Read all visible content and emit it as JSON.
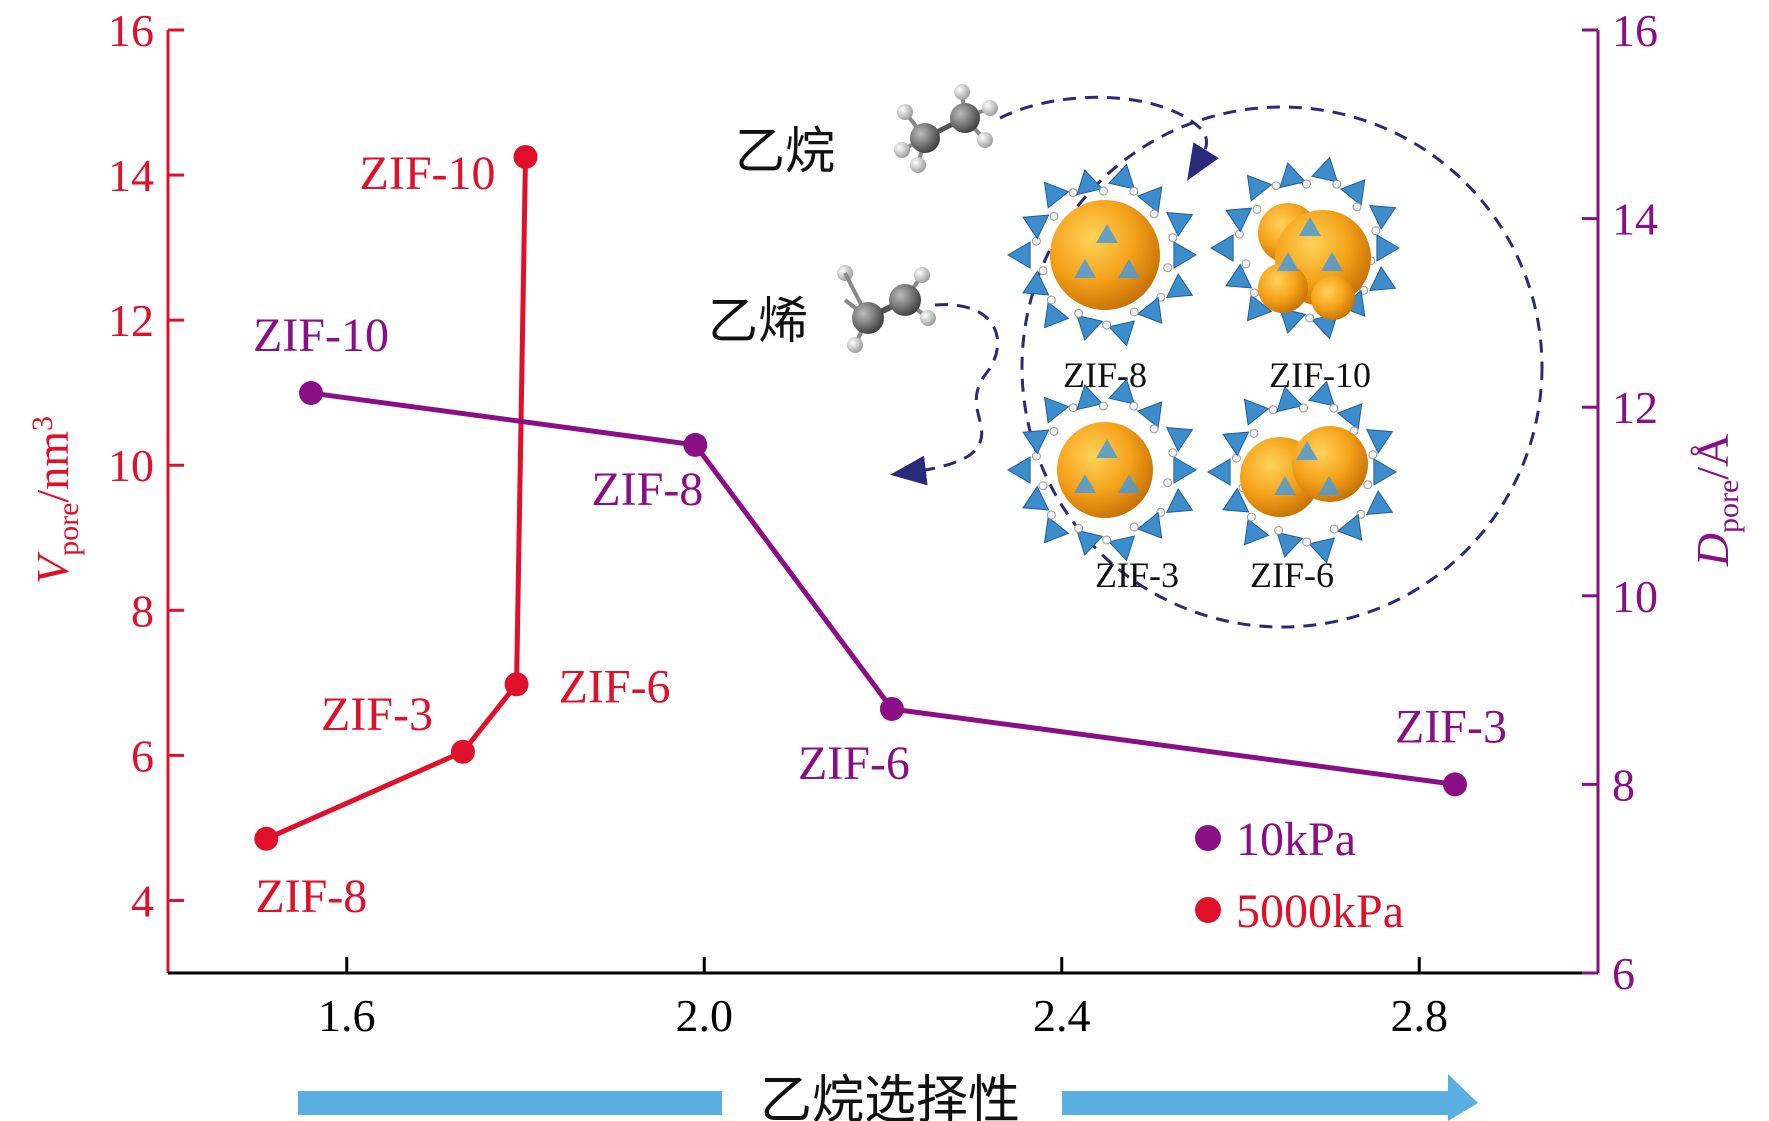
{
  "chart_data": {
    "type": "line",
    "xlabel": "乙烷选择性",
    "x_ticks": [
      "1.6",
      "2.0",
      "2.4",
      "2.8"
    ],
    "xlim": [
      1.4,
      3.0
    ],
    "y_left": {
      "label_main": "V",
      "label_sub": "pore",
      "label_unit": "/nm",
      "label_sup": "3",
      "lim": [
        3,
        16
      ],
      "ticks": [
        "4",
        "6",
        "8",
        "10",
        "12",
        "14",
        "16"
      ],
      "color": "#e0102a"
    },
    "y_right": {
      "label_main": "D",
      "label_sub": "pore",
      "label_unit": "/Å",
      "lim": [
        6,
        16
      ],
      "ticks": [
        "6",
        "8",
        "10",
        "12",
        "14",
        "16"
      ],
      "color": "#8a0f86"
    },
    "series": [
      {
        "name": "5000kPa",
        "axis": "left",
        "color": "#e0102a",
        "points": [
          {
            "x": 1.51,
            "y": 4.85,
            "label": "ZIF-8"
          },
          {
            "x": 1.73,
            "y": 6.05,
            "label": "ZIF-3"
          },
          {
            "x": 1.79,
            "y": 6.98,
            "label": "ZIF-6"
          },
          {
            "x": 1.8,
            "y": 14.25,
            "label": "ZIF-10"
          }
        ]
      },
      {
        "name": "10kPa",
        "axis": "right",
        "color": "#8a0f86",
        "points": [
          {
            "x": 1.56,
            "y": 12.15,
            "label": "ZIF-10"
          },
          {
            "x": 1.99,
            "y": 11.6,
            "label": "ZIF-8"
          },
          {
            "x": 2.21,
            "y": 8.8,
            "label": "ZIF-6"
          },
          {
            "x": 2.84,
            "y": 8.0,
            "label": "ZIF-3"
          }
        ]
      }
    ],
    "legend": [
      {
        "name": "10kPa",
        "color": "#8a0f86"
      },
      {
        "name": "5000kPa",
        "color": "#e0102a"
      }
    ],
    "legend_position": "bottom-right",
    "arrow_color": "#5aaee0"
  },
  "inset": {
    "ethane_label": "乙烷",
    "ethylene_label": "乙烯",
    "frameworks": [
      "ZIF-8",
      "ZIF-10",
      "ZIF-3",
      "ZIF-6"
    ],
    "dash_color": "#2a2a7a"
  }
}
